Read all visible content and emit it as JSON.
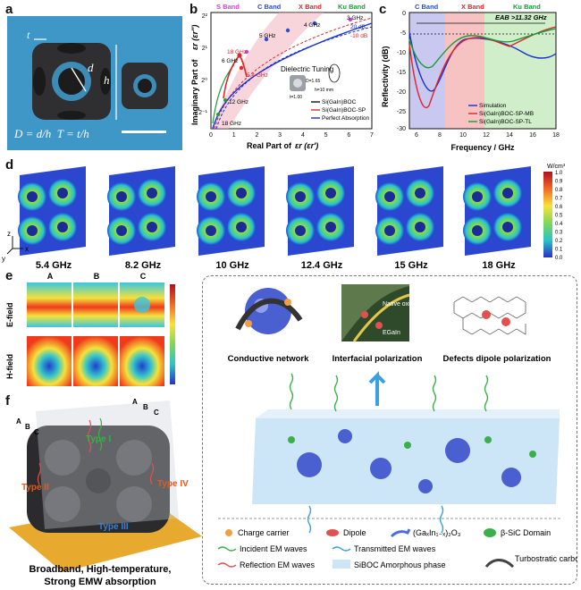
{
  "panel_labels": {
    "a": "a",
    "b": "b",
    "c": "c",
    "d": "d",
    "e": "e",
    "f": "f"
  },
  "panel_a": {
    "t_label": "t",
    "d_label": "d",
    "h_label": "h",
    "formula": "D = d/h  T = t/h",
    "colors": {
      "bg": "#3f97c8",
      "part": "#2f2f31"
    }
  },
  "panel_b": {
    "legend_bands": [
      "S Band",
      "C Band",
      "X Band",
      "Ku Band"
    ],
    "legend_band_colors": [
      "#d63fd6",
      "#2b4fd1",
      "#e0262a",
      "#1f9a3a"
    ],
    "xlabel": "Real Part of",
    "xlabel_math": "εr (εr′)",
    "ylabel": "Imaginary Part of",
    "ylabel_math": "εr (εr″)",
    "xticks": [
      "0",
      "1",
      "2",
      "3",
      "4",
      "5",
      "6",
      "7"
    ],
    "yticks": [
      "2⁻¹",
      "2⁰",
      "2¹",
      "2²"
    ],
    "freq_labels": [
      "3 GHz",
      "4 GHz",
      "5 GHz",
      "6 GHz",
      "18 GHz",
      "5.4 GHz",
      "12 GHz",
      "18 GHz"
    ],
    "db_labels": [
      "20 dB",
      "-10 dB"
    ],
    "annotation": "Dielectric Tuning",
    "inset_labels": [
      "D=1.65",
      "t=1.00",
      "h=10 mm"
    ],
    "legend": [
      "Si(GaIn)BOC",
      "Si(GaIn)BOC-SP",
      "Perfect Absorption"
    ],
    "legend_colors": [
      "#111111",
      "#d62b2b",
      "#1a2fd1"
    ]
  },
  "panel_c": {
    "bands": [
      "C Band",
      "X Band",
      "Ku Band"
    ],
    "band_colors": [
      "#2b4fd1",
      "#e0262a",
      "#1f9a3a"
    ],
    "eab": "EAB >11.32 GHz",
    "xlabel": "Frequency / GHz",
    "ylabel": "Reflectivity (dB)",
    "xticks": [
      "6",
      "8",
      "10",
      "12",
      "14",
      "16",
      "18"
    ],
    "yticks": [
      "0",
      "-5",
      "-10",
      "-15",
      "-20",
      "-25",
      "-30"
    ],
    "legend": [
      "Simulation",
      "Si(GaIn)BOC-SP-MB",
      "Si(GaIn)BOC-SP-TL"
    ],
    "legend_colors": [
      "#1a2fd1",
      "#e0262a",
      "#1f9a3a"
    ]
  },
  "panel_d": {
    "freqs": [
      "5.4 GHz",
      "8.2 GHz",
      "10 GHz",
      "12.4 GHz",
      "15 GHz",
      "18 GHz"
    ],
    "colorbar_unit": "W/cm³",
    "colorbar_ticks": [
      "1.0",
      "0.9",
      "0.8",
      "0.7",
      "0.6",
      "0.5",
      "0.4",
      "0.3",
      "0.2",
      "0.1",
      "0.0"
    ],
    "axes": [
      "z",
      "y",
      "x"
    ]
  },
  "panel_e": {
    "cols": [
      "A",
      "B",
      "C"
    ],
    "rows": [
      "E-field",
      "H-field"
    ]
  },
  "mechanisms": {
    "titles": [
      "Conductive network",
      "Interfacial polarization",
      "Defects dipole polarization"
    ],
    "inset_text": [
      "Native oxides",
      "EGaIn"
    ]
  },
  "panel_f": {
    "types": [
      "Type I",
      "Type II",
      "Type III",
      "Type IV"
    ],
    "plane_labels": [
      "A",
      "B",
      "C",
      "A",
      "B",
      "C"
    ],
    "caption_lines": [
      "Broadband, High-temperature,",
      "Strong EMW absorption"
    ]
  },
  "legend_box": {
    "items": [
      "Charge carrier",
      "Dipole",
      "(GaₓIn₁₋ₓ)₂O₃",
      "β-SiC Domain",
      "Incident EM waves",
      "Transmitted EM waves",
      "Reflection EM waves",
      "SiBOC Amorphous phase",
      "Turbostratic carbon"
    ]
  }
}
